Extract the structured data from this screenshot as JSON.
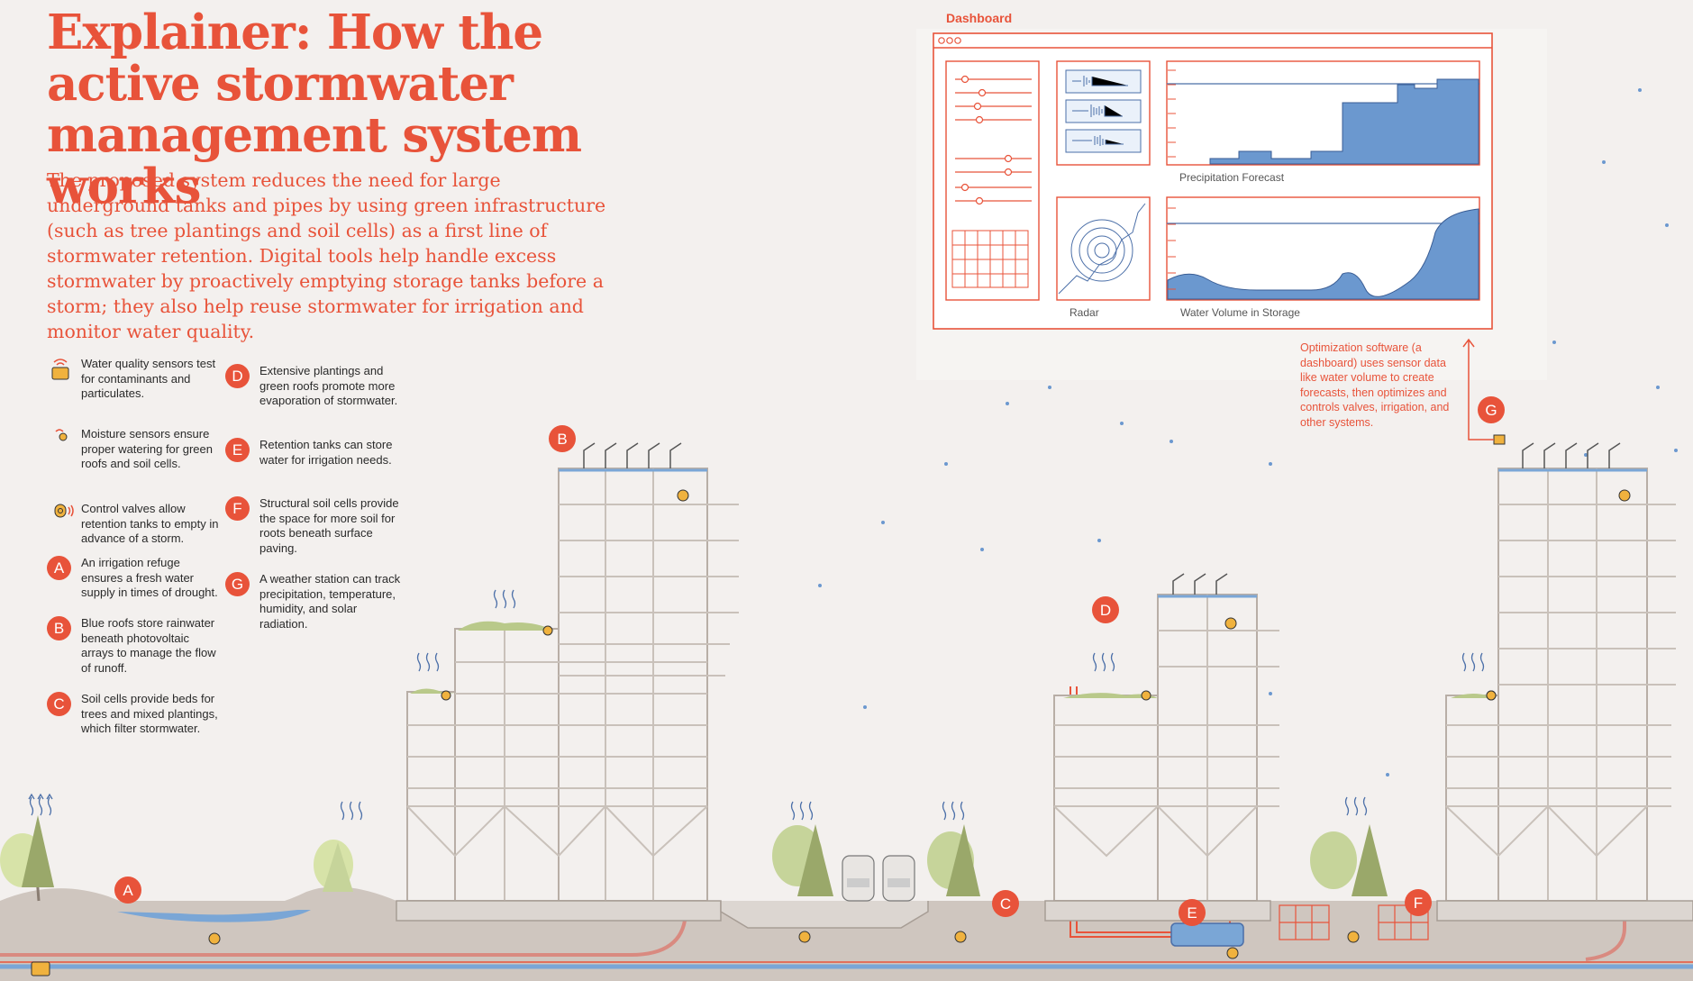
{
  "title": "Explainer: How the active stormwater management system works",
  "intro": "The proposed system reduces the need for large underground tanks and pipes by using green infrastructure (such as tree plantings and soil cells) as a first line of stormwater retention. Digital tools help handle excess stormwater by proactively emptying storage tanks before a storm; they also help reuse stormwater for irrigation and monitor water quality.",
  "legend": {
    "water_quality": "Water quality sensors test for contaminants and particulates.",
    "moisture": "Moisture sensors ensure proper watering for green roofs and soil cells.",
    "control_valves": "Control valves allow retention tanks to empty in advance of a storm.",
    "a": {
      "badge": "A",
      "text": "An irrigation refuge ensures a fresh water supply in times of drought."
    },
    "b": {
      "badge": "B",
      "text": "Blue roofs store rainwater beneath photovoltaic arrays to manage the flow of runoff."
    },
    "c": {
      "badge": "C",
      "text": "Soil cells provide beds for trees and mixed plantings, which filter stormwater."
    },
    "d": {
      "badge": "D",
      "text": "Extensive plantings and green roofs promote more evaporation of stormwater."
    },
    "e": {
      "badge": "E",
      "text": "Retention tanks can store water for irrigation needs."
    },
    "f": {
      "badge": "F",
      "text": "Structural soil cells provide the space for more soil for roots beneath surface paving."
    },
    "g": {
      "badge": "G",
      "text": "A weather station can track precipitation, temperature, humidity, and solar radiation."
    }
  },
  "dashboard": {
    "label": "Dashboard",
    "precipitation_label": "Precipitation Forecast",
    "radar_label": "Radar",
    "water_volume_label": "Water Volume in Storage",
    "note": "Optimization software (a dashboard) uses sensor data like water volume to create forecasts, then optimizes and controls valves, irrigation, and other systems."
  },
  "markers": {
    "a": "A",
    "b": "B",
    "c": "C",
    "d": "D",
    "e": "E",
    "f": "F",
    "g": "G"
  },
  "colors": {
    "accent": "#e8533a",
    "water": "#5b8ec9",
    "ground": "#cfc6bf",
    "building": "#c9c1ba",
    "tree": "#b9c98a"
  }
}
